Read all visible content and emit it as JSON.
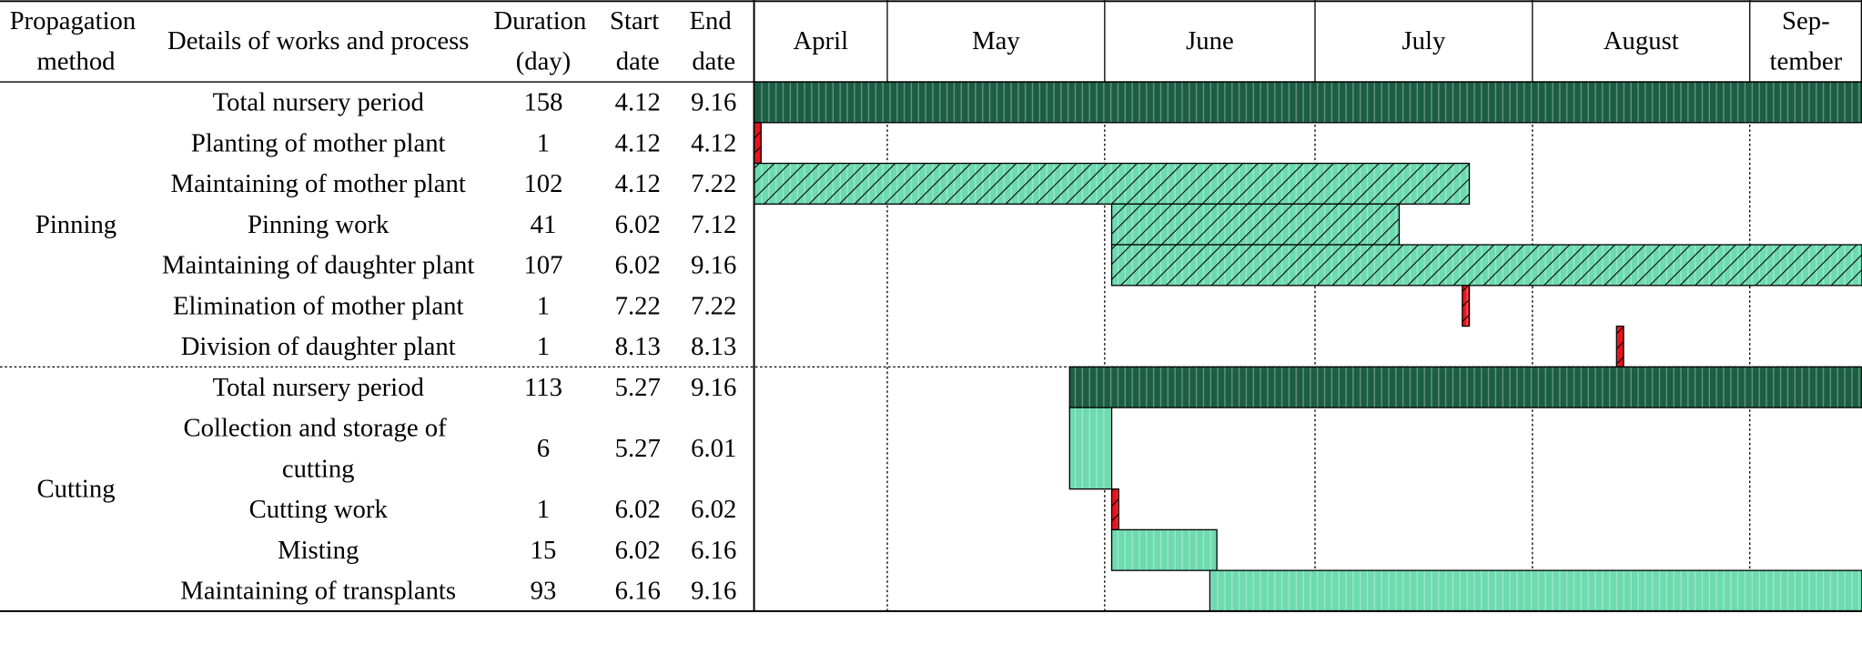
{
  "header": {
    "method": "Propagation method",
    "details": "Details of works and process",
    "duration": "Duration (day)",
    "start": "Start date",
    "end": "End date"
  },
  "months": [
    "April",
    "May",
    "June",
    "July",
    "August",
    "Sep-tember"
  ],
  "groups": [
    {
      "method": "Pinning",
      "rows": [
        {
          "task": "Total nursery period",
          "duration": 158,
          "start": "4.12",
          "end": "9.16",
          "color": "#1b5e44",
          "hatch": false
        },
        {
          "task": "Planting of mother plant",
          "duration": 1,
          "start": "4.12",
          "end": "4.12",
          "color": "#e8141c",
          "hatch": true
        },
        {
          "task": "Maintaining of mother plant",
          "duration": 102,
          "start": "4.12",
          "end": "7.22",
          "color": "#6ddab0",
          "hatch": true
        },
        {
          "task": "Pinning work",
          "duration": 41,
          "start": "6.02",
          "end": "7.12",
          "color": "#6ddab0",
          "hatch": true
        },
        {
          "task": "Maintaining of daughter plant",
          "duration": 107,
          "start": "6.02",
          "end": "9.16",
          "color": "#6ddab0",
          "hatch": true
        },
        {
          "task": "Elimination of mother plant",
          "duration": 1,
          "start": "7.22",
          "end": "7.22",
          "color": "#e8141c",
          "hatch": true
        },
        {
          "task": "Division of daughter plant",
          "duration": 1,
          "start": "8.13",
          "end": "8.13",
          "color": "#e8141c",
          "hatch": true
        }
      ]
    },
    {
      "method": "Cutting",
      "rows": [
        {
          "task": "Total nursery period",
          "duration": 113,
          "start": "5.27",
          "end": "9.16",
          "color": "#1b5e44",
          "hatch": false
        },
        {
          "task": "Collection and storage of cutting",
          "duration": 6,
          "start": "5.27",
          "end": "6.01",
          "color": "#6ddab0",
          "hatch": false
        },
        {
          "task": "Cutting work",
          "duration": 1,
          "start": "6.02",
          "end": "6.02",
          "color": "#e8141c",
          "hatch": true
        },
        {
          "task": "Misting",
          "duration": 15,
          "start": "6.02",
          "end": "6.16",
          "color": "#6ddab0",
          "hatch": false
        },
        {
          "task": "Maintaining of transplants",
          "duration": 93,
          "start": "6.16",
          "end": "9.16",
          "color": "#6ddab0",
          "hatch": false
        }
      ]
    }
  ]
}
